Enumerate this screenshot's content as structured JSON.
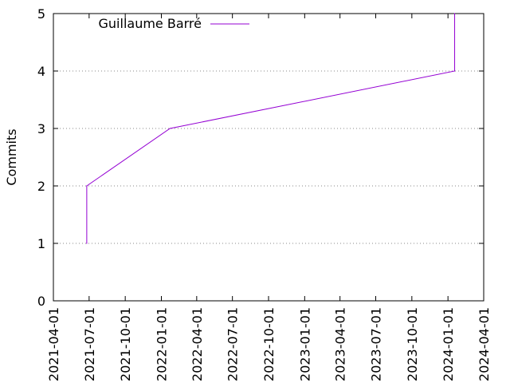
{
  "chart_data": {
    "type": "line",
    "title": "",
    "xlabel": "",
    "ylabel": "Commits",
    "x_axis": {
      "type": "date",
      "range": [
        "2021-04-01",
        "2024-04-01"
      ],
      "ticks": [
        "2021-04-01",
        "2021-07-01",
        "2021-10-01",
        "2022-01-01",
        "2022-04-01",
        "2022-07-01",
        "2022-10-01",
        "2023-01-01",
        "2023-04-01",
        "2023-07-01",
        "2023-10-01",
        "2024-01-01",
        "2024-04-01"
      ]
    },
    "y_axis": {
      "range": [
        0,
        5
      ],
      "ticks": [
        "0",
        "1",
        "2",
        "3",
        "4",
        "5"
      ]
    },
    "grid": "horizontal dotted",
    "legend_position": "top-left",
    "series": [
      {
        "name": "Guillaume Barré",
        "color": "#9400d3",
        "points": [
          {
            "x": "2021-06-25",
            "y": 1
          },
          {
            "x": "2021-06-25",
            "y": 2
          },
          {
            "x": "2022-01-23",
            "y": 3
          },
          {
            "x": "2024-01-18",
            "y": 4
          },
          {
            "x": "2024-01-18",
            "y": 5
          }
        ]
      }
    ]
  }
}
